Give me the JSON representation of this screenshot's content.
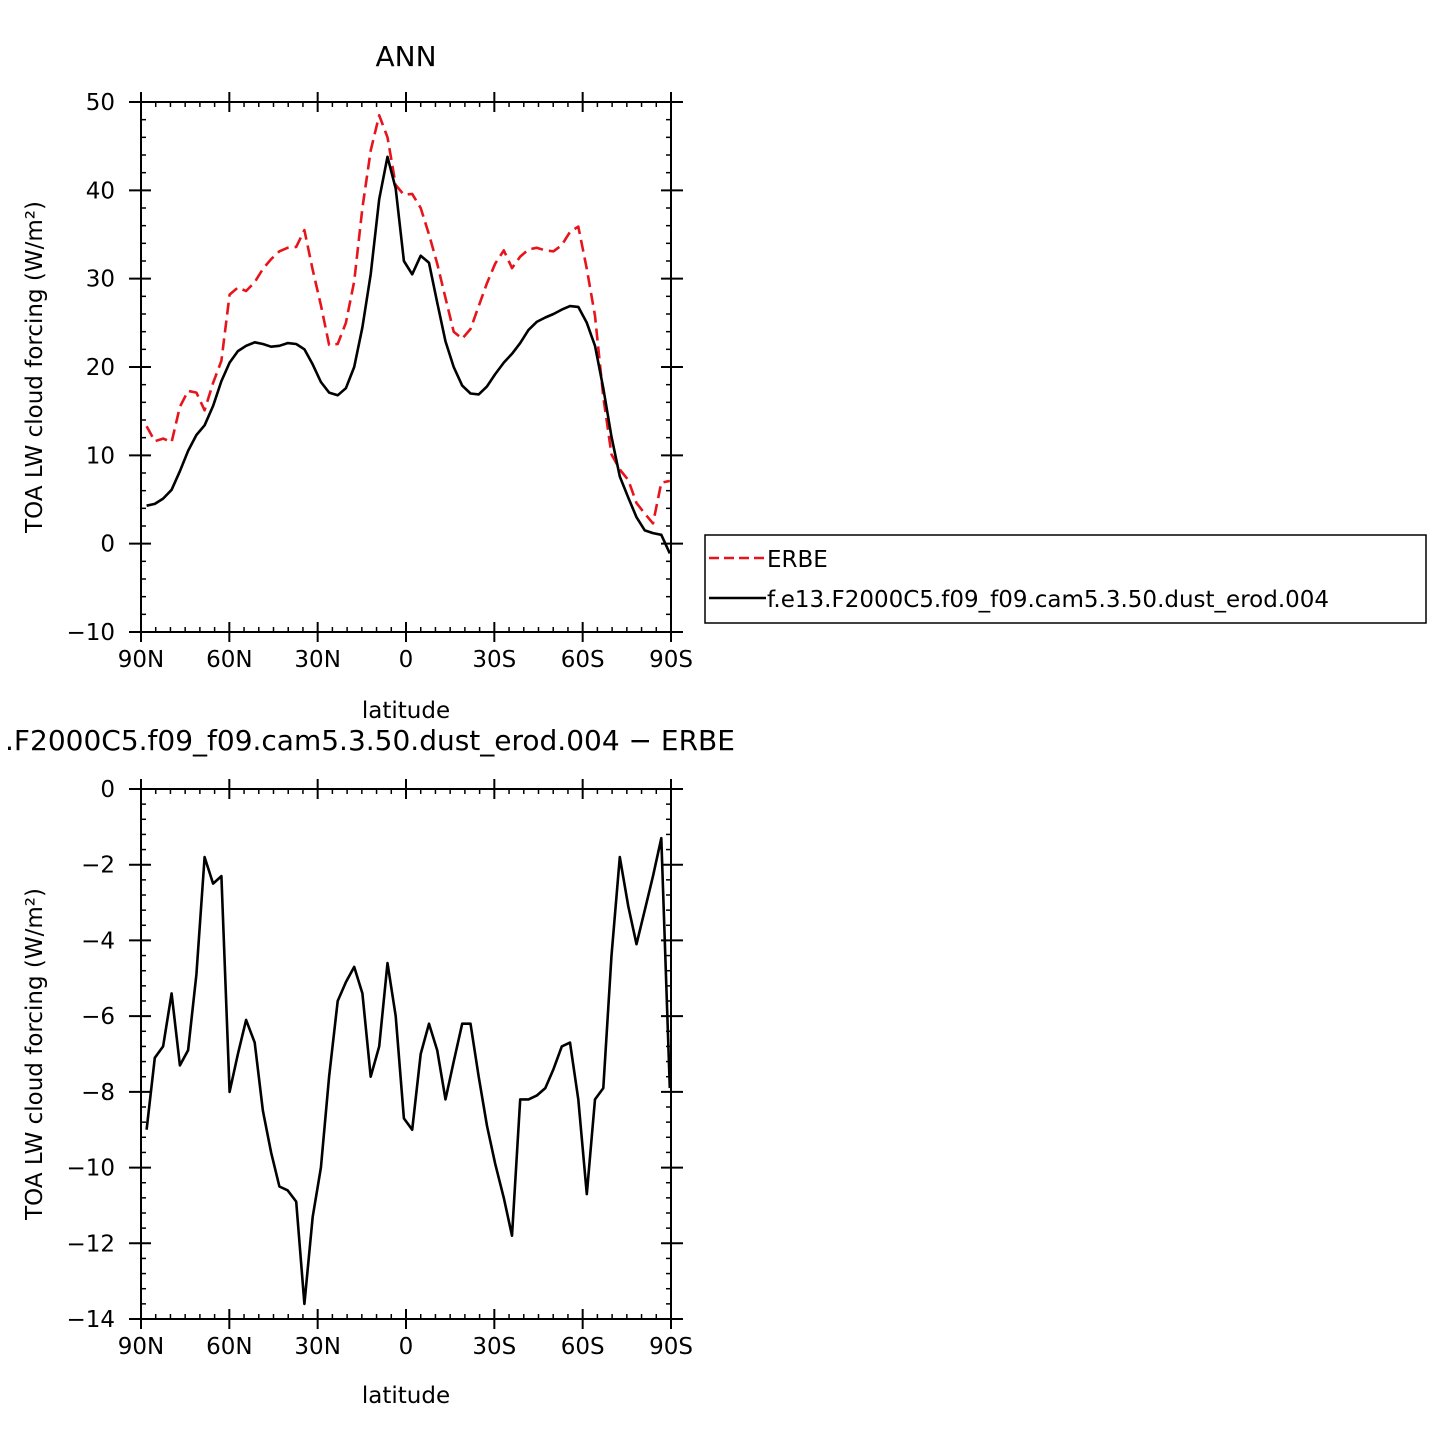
{
  "colors": {
    "erbe": "#e8141c",
    "model": "#000000",
    "axis": "#000000"
  },
  "chart_data": [
    {
      "type": "line",
      "title": "ANN",
      "xlabel": "latitude",
      "ylabel": "TOA LW cloud forcing (W/m²)",
      "xlim": [
        -90,
        90
      ],
      "ylim": [
        -10,
        50
      ],
      "xticks": [
        -90,
        -60,
        -30,
        0,
        30,
        60,
        90
      ],
      "xtick_labels": [
        "90N",
        "60N",
        "30N",
        "0",
        "30S",
        "60S",
        "90S"
      ],
      "yticks": [
        -10,
        0,
        10,
        20,
        30,
        40,
        50
      ],
      "ytick_labels": [
        "−10",
        "0",
        "10",
        "20",
        "30",
        "40",
        "50"
      ],
      "legend_position": "right",
      "x": [
        -88.1,
        -85.3,
        -82.5,
        -79.6,
        -76.8,
        -74.0,
        -71.2,
        -68.4,
        -65.5,
        -62.7,
        -59.9,
        -57.1,
        -54.3,
        -51.4,
        -48.6,
        -45.8,
        -43.0,
        -40.2,
        -37.3,
        -34.5,
        -31.7,
        -28.9,
        -26.1,
        -23.2,
        -20.4,
        -17.6,
        -14.8,
        -12.0,
        -9.1,
        -6.3,
        -3.5,
        -0.7,
        2.1,
        5.0,
        7.8,
        10.6,
        13.4,
        16.2,
        19.1,
        21.9,
        24.7,
        27.5,
        30.3,
        33.2,
        36.0,
        38.8,
        41.6,
        44.4,
        47.3,
        50.1,
        52.9,
        55.7,
        58.5,
        61.4,
        64.2,
        67.0,
        69.8,
        72.6,
        75.5,
        78.3,
        81.1,
        83.9,
        86.7,
        89.6
      ],
      "series": [
        {
          "name": "ERBE",
          "color": "#e8141c",
          "dash": "dashed",
          "values": [
            13.3,
            11.6,
            11.9,
            11.5,
            15.5,
            17.3,
            17.1,
            15.1,
            18.2,
            20.7,
            28.2,
            29.0,
            28.6,
            29.6,
            31.1,
            32.2,
            33.1,
            33.5,
            33.6,
            35.5,
            31.0,
            27.0,
            22.5,
            22.6,
            25.0,
            29.7,
            38.0,
            44.5,
            48.5,
            46.0,
            40.6,
            39.5,
            39.6,
            38.0,
            35.0,
            31.7,
            27.8,
            24.0,
            23.2,
            24.3,
            26.9,
            29.5,
            31.7,
            33.2,
            31.2,
            32.5,
            33.3,
            33.5,
            33.2,
            33.1,
            33.8,
            35.3,
            35.9,
            31.1,
            25.8,
            16.6,
            10.1,
            8.4,
            7.2,
            4.6,
            3.4,
            2.3,
            6.9,
            7.1
          ]
        },
        {
          "name": "f.e13.F2000C5.f09_f09.cam5.3.50.dust_erod.004",
          "color": "#000000",
          "dash": "solid",
          "values": [
            4.3,
            4.5,
            5.1,
            6.1,
            8.2,
            10.5,
            12.3,
            13.4,
            15.6,
            18.4,
            20.5,
            21.8,
            22.4,
            22.8,
            22.6,
            22.3,
            22.4,
            22.7,
            22.6,
            22.0,
            20.3,
            18.3,
            17.1,
            16.8,
            17.6,
            20.0,
            24.5,
            30.5,
            39.0,
            43.8,
            40.2,
            32.0,
            30.5,
            32.6,
            31.8,
            27.3,
            22.9,
            20.0,
            17.9,
            17.0,
            16.9,
            17.8,
            19.2,
            20.5,
            21.5,
            22.7,
            24.2,
            25.1,
            25.6,
            26.0,
            26.5,
            26.9,
            26.8,
            25.0,
            22.4,
            17.6,
            12.1,
            7.6,
            5.2,
            3.0,
            1.5,
            1.2,
            1.0,
            -1.1
          ]
        }
      ]
    },
    {
      "type": "line",
      "title": ".F2000C5.f09_f09.cam5.3.50.dust_erod.004 − ERBE",
      "xlabel": "latitude",
      "ylabel": "TOA LW cloud forcing (W/m²)",
      "xlim": [
        -90,
        90
      ],
      "ylim": [
        -14,
        0
      ],
      "xticks": [
        -90,
        -60,
        -30,
        0,
        30,
        60,
        90
      ],
      "xtick_labels": [
        "90N",
        "60N",
        "30N",
        "0",
        "30S",
        "60S",
        "90S"
      ],
      "yticks": [
        -14,
        -12,
        -10,
        -8,
        -6,
        -4,
        -2,
        0
      ],
      "ytick_labels": [
        "−14",
        "−12",
        "−10",
        "−8",
        "−6",
        "−4",
        "−2",
        "0"
      ],
      "x": [
        -88.1,
        -85.3,
        -82.5,
        -79.6,
        -76.8,
        -74.0,
        -71.2,
        -68.4,
        -65.5,
        -62.7,
        -59.9,
        -57.1,
        -54.3,
        -51.4,
        -48.6,
        -45.8,
        -43.0,
        -40.2,
        -37.3,
        -34.5,
        -31.7,
        -28.9,
        -26.1,
        -23.2,
        -20.4,
        -17.6,
        -14.8,
        -12.0,
        -9.1,
        -6.3,
        -3.5,
        -0.7,
        2.1,
        5.0,
        7.8,
        10.6,
        13.4,
        16.2,
        19.1,
        21.9,
        24.7,
        27.5,
        30.3,
        33.2,
        36.0,
        38.8,
        41.6,
        44.4,
        47.3,
        50.1,
        52.9,
        55.7,
        58.5,
        61.4,
        64.2,
        67.0,
        69.8,
        72.6,
        75.5,
        78.3,
        81.1,
        83.9,
        86.7,
        89.6
      ],
      "series": [
        {
          "color": "#000000",
          "dash": "solid",
          "values": [
            -9.0,
            -7.1,
            -6.8,
            -5.4,
            -7.3,
            -6.9,
            -4.9,
            -1.8,
            -2.5,
            -2.3,
            -8.0,
            -7.0,
            -6.1,
            -6.7,
            -8.5,
            -9.6,
            -10.5,
            -10.6,
            -10.9,
            -13.6,
            -11.3,
            -10.0,
            -7.6,
            -5.6,
            -5.1,
            -4.7,
            -5.4,
            -7.6,
            -6.8,
            -4.6,
            -6.0,
            -8.7,
            -9.0,
            -7.0,
            -6.2,
            -6.9,
            -8.2,
            -7.2,
            -6.2,
            -6.2,
            -7.6,
            -8.9,
            -9.9,
            -10.8,
            -11.8,
            -8.2,
            -8.2,
            -8.1,
            -7.9,
            -7.4,
            -6.8,
            -6.7,
            -8.2,
            -10.7,
            -8.2,
            -7.9,
            -4.4,
            -1.8,
            -3.1,
            -4.1,
            -3.2,
            -2.3,
            -1.3,
            -7.9
          ]
        }
      ]
    }
  ]
}
